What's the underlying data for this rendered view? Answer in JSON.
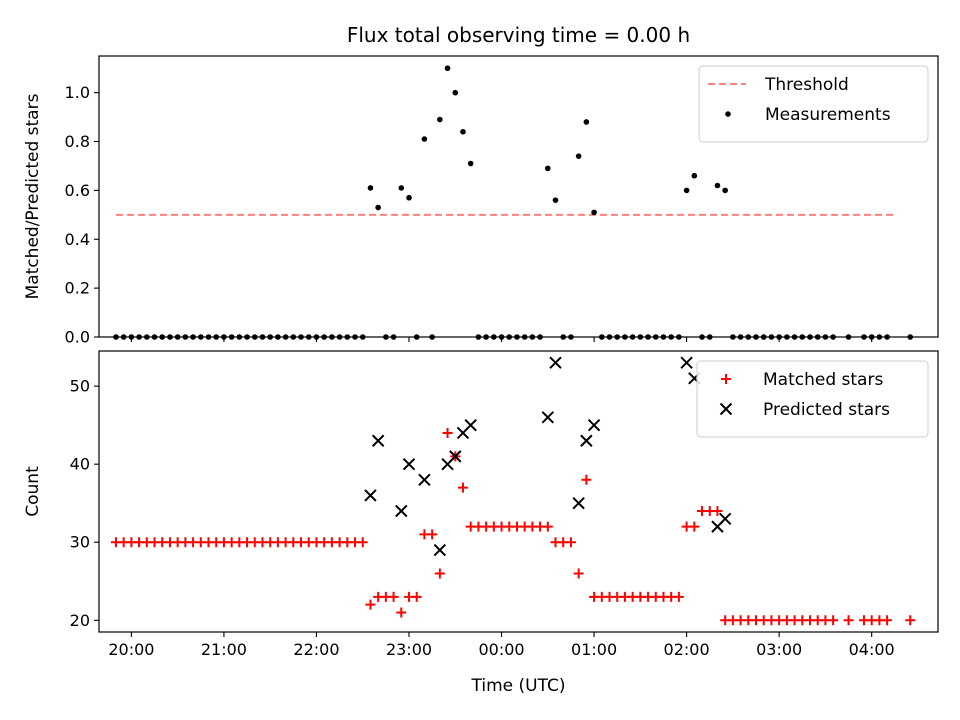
{
  "chart_data": [
    {
      "type": "scatter",
      "title": "Flux total observing time = 0.00 h",
      "xlabel": "",
      "ylabel": "Matched/Predicted stars",
      "ylim": [
        0,
        1.15
      ],
      "yticks": [
        0.0,
        0.2,
        0.4,
        0.6,
        0.8,
        1.0
      ],
      "ytick_labels": [
        "0.0",
        "0.2",
        "0.4",
        "0.6",
        "0.8",
        "1.0"
      ],
      "xlim": [
        "19:39",
        "04:43"
      ],
      "xticks": [
        "20:00",
        "21:00",
        "22:00",
        "23:00",
        "00:00",
        "01:00",
        "02:00",
        "03:00",
        "04:00"
      ],
      "legend_position": "top-right",
      "threshold": {
        "name": "Threshold",
        "value": 0.5,
        "x_range": [
          "19:50",
          "04:15"
        ],
        "color": "#ff7f7f",
        "style": "dashed"
      },
      "series": [
        {
          "name": "Measurements",
          "color": "#000000",
          "marker": "dot",
          "points": [
            [
              "19:50",
              0
            ],
            [
              "19:55",
              0
            ],
            [
              "20:00",
              0
            ],
            [
              "20:05",
              0
            ],
            [
              "20:10",
              0
            ],
            [
              "20:15",
              0
            ],
            [
              "20:20",
              0
            ],
            [
              "20:25",
              0
            ],
            [
              "20:30",
              0
            ],
            [
              "20:35",
              0
            ],
            [
              "20:40",
              0
            ],
            [
              "20:45",
              0
            ],
            [
              "20:50",
              0
            ],
            [
              "20:55",
              0
            ],
            [
              "21:00",
              0
            ],
            [
              "21:05",
              0
            ],
            [
              "21:10",
              0
            ],
            [
              "21:15",
              0
            ],
            [
              "21:20",
              0
            ],
            [
              "21:25",
              0
            ],
            [
              "21:30",
              0
            ],
            [
              "21:35",
              0
            ],
            [
              "21:40",
              0
            ],
            [
              "21:45",
              0
            ],
            [
              "21:50",
              0
            ],
            [
              "21:55",
              0
            ],
            [
              "22:00",
              0
            ],
            [
              "22:05",
              0
            ],
            [
              "22:10",
              0
            ],
            [
              "22:15",
              0
            ],
            [
              "22:20",
              0
            ],
            [
              "22:25",
              0
            ],
            [
              "22:30",
              0
            ],
            [
              "22:35",
              0.61
            ],
            [
              "22:40",
              0.53
            ],
            [
              "22:45",
              0
            ],
            [
              "22:50",
              0
            ],
            [
              "22:55",
              0.61
            ],
            [
              "23:00",
              0.57
            ],
            [
              "23:05",
              0
            ],
            [
              "23:10",
              0.81
            ],
            [
              "23:15",
              0
            ],
            [
              "23:20",
              0.89
            ],
            [
              "23:25",
              1.1
            ],
            [
              "23:30",
              1.0
            ],
            [
              "23:35",
              0.84
            ],
            [
              "23:40",
              0.71
            ],
            [
              "23:45",
              0
            ],
            [
              "23:50",
              0
            ],
            [
              "23:55",
              0
            ],
            [
              "00:00",
              0
            ],
            [
              "00:05",
              0
            ],
            [
              "00:10",
              0
            ],
            [
              "00:15",
              0
            ],
            [
              "00:20",
              0
            ],
            [
              "00:25",
              0
            ],
            [
              "00:30",
              0.69
            ],
            [
              "00:35",
              0.56
            ],
            [
              "00:40",
              0
            ],
            [
              "00:45",
              0
            ],
            [
              "00:50",
              0.74
            ],
            [
              "00:55",
              0.88
            ],
            [
              "01:00",
              0.51
            ],
            [
              "01:05",
              0
            ],
            [
              "01:10",
              0
            ],
            [
              "01:15",
              0
            ],
            [
              "01:20",
              0
            ],
            [
              "01:25",
              0
            ],
            [
              "01:30",
              0
            ],
            [
              "01:35",
              0
            ],
            [
              "01:40",
              0
            ],
            [
              "01:45",
              0
            ],
            [
              "01:50",
              0
            ],
            [
              "01:55",
              0
            ],
            [
              "02:00",
              0.6
            ],
            [
              "02:05",
              0.66
            ],
            [
              "02:10",
              0
            ],
            [
              "02:15",
              0
            ],
            [
              "02:20",
              0.62
            ],
            [
              "02:25",
              0.6
            ],
            [
              "02:30",
              0
            ],
            [
              "02:35",
              0
            ],
            [
              "02:40",
              0
            ],
            [
              "02:45",
              0
            ],
            [
              "02:50",
              0
            ],
            [
              "02:55",
              0
            ],
            [
              "03:00",
              0
            ],
            [
              "03:05",
              0
            ],
            [
              "03:10",
              0
            ],
            [
              "03:15",
              0
            ],
            [
              "03:20",
              0
            ],
            [
              "03:25",
              0
            ],
            [
              "03:30",
              0
            ],
            [
              "03:35",
              0
            ],
            [
              "03:45",
              0
            ],
            [
              "03:55",
              0
            ],
            [
              "04:00",
              0
            ],
            [
              "04:05",
              0
            ],
            [
              "04:10",
              0
            ],
            [
              "04:25",
              0
            ]
          ]
        }
      ]
    },
    {
      "type": "scatter",
      "title": "",
      "xlabel": "Time (UTC)",
      "ylabel": "Count",
      "ylim": [
        18.5,
        54.5
      ],
      "yticks": [
        20,
        30,
        40,
        50
      ],
      "ytick_labels": [
        "20",
        "30",
        "40",
        "50"
      ],
      "xlim": [
        "19:39",
        "04:43"
      ],
      "xticks": [
        "20:00",
        "21:00",
        "22:00",
        "23:00",
        "00:00",
        "01:00",
        "02:00",
        "03:00",
        "04:00"
      ],
      "xtick_labels": [
        "20:00",
        "21:00",
        "22:00",
        "23:00",
        "00:00",
        "01:00",
        "02:00",
        "03:00",
        "04:00"
      ],
      "legend_position": "top-right",
      "series": [
        {
          "name": "Matched stars",
          "color": "#ff0000",
          "marker": "plus",
          "points": [
            [
              "19:50",
              30
            ],
            [
              "19:55",
              30
            ],
            [
              "20:00",
              30
            ],
            [
              "20:05",
              30
            ],
            [
              "20:10",
              30
            ],
            [
              "20:15",
              30
            ],
            [
              "20:20",
              30
            ],
            [
              "20:25",
              30
            ],
            [
              "20:30",
              30
            ],
            [
              "20:35",
              30
            ],
            [
              "20:40",
              30
            ],
            [
              "20:45",
              30
            ],
            [
              "20:50",
              30
            ],
            [
              "20:55",
              30
            ],
            [
              "21:00",
              30
            ],
            [
              "21:05",
              30
            ],
            [
              "21:10",
              30
            ],
            [
              "21:15",
              30
            ],
            [
              "21:20",
              30
            ],
            [
              "21:25",
              30
            ],
            [
              "21:30",
              30
            ],
            [
              "21:35",
              30
            ],
            [
              "21:40",
              30
            ],
            [
              "21:45",
              30
            ],
            [
              "21:50",
              30
            ],
            [
              "21:55",
              30
            ],
            [
              "22:00",
              30
            ],
            [
              "22:05",
              30
            ],
            [
              "22:10",
              30
            ],
            [
              "22:15",
              30
            ],
            [
              "22:20",
              30
            ],
            [
              "22:25",
              30
            ],
            [
              "22:30",
              30
            ],
            [
              "22:35",
              22
            ],
            [
              "22:40",
              23
            ],
            [
              "22:45",
              23
            ],
            [
              "22:50",
              23
            ],
            [
              "22:55",
              21
            ],
            [
              "23:00",
              23
            ],
            [
              "23:05",
              23
            ],
            [
              "23:10",
              31
            ],
            [
              "23:15",
              31
            ],
            [
              "23:20",
              26
            ],
            [
              "23:25",
              44
            ],
            [
              "23:30",
              41
            ],
            [
              "23:35",
              37
            ],
            [
              "23:40",
              32
            ],
            [
              "23:45",
              32
            ],
            [
              "23:50",
              32
            ],
            [
              "23:55",
              32
            ],
            [
              "00:00",
              32
            ],
            [
              "00:05",
              32
            ],
            [
              "00:10",
              32
            ],
            [
              "00:15",
              32
            ],
            [
              "00:20",
              32
            ],
            [
              "00:25",
              32
            ],
            [
              "00:30",
              32
            ],
            [
              "00:35",
              30
            ],
            [
              "00:40",
              30
            ],
            [
              "00:45",
              30
            ],
            [
              "00:50",
              26
            ],
            [
              "00:55",
              38
            ],
            [
              "01:00",
              23
            ],
            [
              "01:05",
              23
            ],
            [
              "01:10",
              23
            ],
            [
              "01:15",
              23
            ],
            [
              "01:20",
              23
            ],
            [
              "01:25",
              23
            ],
            [
              "01:30",
              23
            ],
            [
              "01:35",
              23
            ],
            [
              "01:40",
              23
            ],
            [
              "01:45",
              23
            ],
            [
              "01:50",
              23
            ],
            [
              "01:55",
              23
            ],
            [
              "02:00",
              32
            ],
            [
              "02:05",
              32
            ],
            [
              "02:10",
              34
            ],
            [
              "02:15",
              34
            ],
            [
              "02:20",
              34
            ],
            [
              "02:25",
              20
            ],
            [
              "02:30",
              20
            ],
            [
              "02:35",
              20
            ],
            [
              "02:40",
              20
            ],
            [
              "02:45",
              20
            ],
            [
              "02:50",
              20
            ],
            [
              "02:55",
              20
            ],
            [
              "03:00",
              20
            ],
            [
              "03:05",
              20
            ],
            [
              "03:10",
              20
            ],
            [
              "03:15",
              20
            ],
            [
              "03:20",
              20
            ],
            [
              "03:25",
              20
            ],
            [
              "03:30",
              20
            ],
            [
              "03:35",
              20
            ],
            [
              "03:45",
              20
            ],
            [
              "03:55",
              20
            ],
            [
              "04:00",
              20
            ],
            [
              "04:05",
              20
            ],
            [
              "04:10",
              20
            ],
            [
              "04:25",
              20
            ]
          ]
        },
        {
          "name": "Predicted stars",
          "color": "#000000",
          "marker": "x",
          "points": [
            [
              "22:35",
              36
            ],
            [
              "22:40",
              43
            ],
            [
              "22:55",
              34
            ],
            [
              "23:00",
              40
            ],
            [
              "23:10",
              38
            ],
            [
              "23:20",
              29
            ],
            [
              "23:25",
              40
            ],
            [
              "23:30",
              41
            ],
            [
              "23:35",
              44
            ],
            [
              "23:40",
              45
            ],
            [
              "00:30",
              46
            ],
            [
              "00:35",
              53
            ],
            [
              "00:50",
              35
            ],
            [
              "00:55",
              43
            ],
            [
              "01:00",
              45
            ],
            [
              "02:00",
              53
            ],
            [
              "02:05",
              51
            ],
            [
              "02:20",
              32
            ],
            [
              "02:25",
              33
            ]
          ]
        }
      ]
    }
  ]
}
